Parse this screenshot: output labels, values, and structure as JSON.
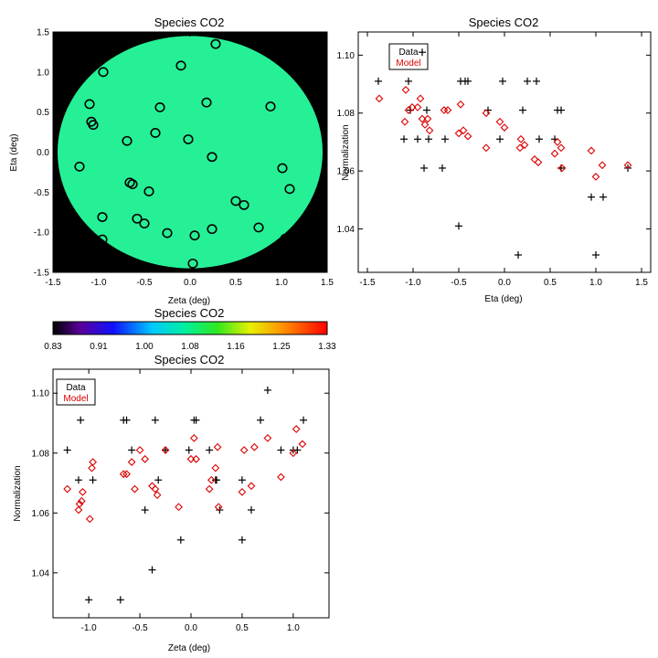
{
  "chart_data": [
    {
      "id": "map",
      "type": "scatter",
      "title": "Species CO2",
      "xlabel": "Zeta (deg)",
      "ylabel": "Eta (deg)",
      "xlim": [
        -1.5,
        1.5
      ],
      "ylim": [
        -1.5,
        1.5
      ],
      "xticks": [
        -1.5,
        -1.0,
        -0.5,
        0.0,
        0.5,
        1.0,
        1.5
      ],
      "yticks": [
        -1.5,
        -1.0,
        -0.5,
        0.0,
        0.5,
        1.0,
        1.5
      ],
      "background_color": "#000000",
      "disk_color": "#26f096",
      "disk_radius": 1.45,
      "points": [
        [
          -0.95,
          1.0
        ],
        [
          0.28,
          1.35
        ],
        [
          -0.1,
          1.08
        ],
        [
          -1.1,
          0.6
        ],
        [
          -1.08,
          0.38
        ],
        [
          -1.06,
          0.34
        ],
        [
          -0.33,
          0.56
        ],
        [
          0.18,
          0.62
        ],
        [
          0.88,
          0.57
        ],
        [
          -0.69,
          0.14
        ],
        [
          -0.38,
          0.24
        ],
        [
          -0.02,
          0.16
        ],
        [
          -1.21,
          -0.18
        ],
        [
          0.24,
          -0.06
        ],
        [
          1.01,
          -0.2
        ],
        [
          -0.66,
          -0.38
        ],
        [
          -0.63,
          -0.4
        ],
        [
          -0.45,
          -0.49
        ],
        [
          0.5,
          -0.61
        ],
        [
          0.59,
          -0.66
        ],
        [
          1.09,
          -0.46
        ],
        [
          -0.96,
          -0.81
        ],
        [
          -0.58,
          -0.83
        ],
        [
          -0.5,
          -0.89
        ],
        [
          -0.25,
          -1.01
        ],
        [
          0.05,
          -1.04
        ],
        [
          0.24,
          -0.96
        ],
        [
          0.75,
          -0.94
        ],
        [
          -0.96,
          -1.09
        ],
        [
          1.04,
          -1.08
        ],
        [
          0.03,
          -1.39
        ]
      ]
    },
    {
      "id": "colorbar",
      "type": "heatmap",
      "title": "Species CO2",
      "range": [
        0.83,
        1.33
      ],
      "tick_labels": [
        "0.83",
        "0.91",
        "1.00",
        "1.08",
        "1.16",
        "1.25",
        "1.33"
      ]
    },
    {
      "id": "eta",
      "type": "scatter",
      "title": "Species CO2",
      "xlabel": "Eta (deg)",
      "ylabel": "Normalization",
      "xlim": [
        -1.6,
        1.6
      ],
      "ylim": [
        1.025,
        1.108
      ],
      "xticks": [
        -1.5,
        -1.0,
        -0.5,
        0.0,
        0.5,
        1.0,
        1.5
      ],
      "yticks": [
        1.04,
        1.06,
        1.08,
        1.1
      ],
      "legend": [
        "Data",
        "Model"
      ],
      "legend_colors": [
        "#000000",
        "#dd0000"
      ],
      "legend_position": "top-left",
      "series": [
        {
          "name": "Data",
          "marker": "plus",
          "color": "#000000",
          "points": [
            [
              -1.38,
              1.091
            ],
            [
              -1.1,
              1.071
            ],
            [
              -1.05,
              1.091
            ],
            [
              -1.03,
              1.081
            ],
            [
              -0.95,
              1.071
            ],
            [
              -0.9,
              1.101
            ],
            [
              -0.88,
              1.061
            ],
            [
              -0.85,
              1.081
            ],
            [
              -0.83,
              1.071
            ],
            [
              -0.68,
              1.061
            ],
            [
              -0.65,
              1.071
            ],
            [
              -0.5,
              1.041
            ],
            [
              -0.48,
              1.091
            ],
            [
              -0.43,
              1.091
            ],
            [
              -0.4,
              1.091
            ],
            [
              -0.18,
              1.081
            ],
            [
              -0.05,
              1.071
            ],
            [
              -0.02,
              1.091
            ],
            [
              0.15,
              1.031
            ],
            [
              0.2,
              1.081
            ],
            [
              0.25,
              1.091
            ],
            [
              0.35,
              1.091
            ],
            [
              0.38,
              1.071
            ],
            [
              0.55,
              1.071
            ],
            [
              0.58,
              1.081
            ],
            [
              0.62,
              1.081
            ],
            [
              0.62,
              1.061
            ],
            [
              0.95,
              1.051
            ],
            [
              1.0,
              1.031
            ],
            [
              1.08,
              1.051
            ],
            [
              1.35,
              1.061
            ]
          ]
        },
        {
          "name": "Model",
          "marker": "diamond",
          "color": "#dd0000",
          "points": [
            [
              -1.37,
              1.085
            ],
            [
              -1.08,
              1.088
            ],
            [
              -1.09,
              1.077
            ],
            [
              -1.05,
              1.081
            ],
            [
              -1.01,
              1.082
            ],
            [
              -0.95,
              1.082
            ],
            [
              -0.92,
              1.085
            ],
            [
              -0.9,
              1.078
            ],
            [
              -0.87,
              1.076
            ],
            [
              -0.84,
              1.078
            ],
            [
              -0.82,
              1.074
            ],
            [
              -0.66,
              1.081
            ],
            [
              -0.62,
              1.081
            ],
            [
              -0.5,
              1.073
            ],
            [
              -0.48,
              1.083
            ],
            [
              -0.45,
              1.074
            ],
            [
              -0.4,
              1.072
            ],
            [
              -0.2,
              1.068
            ],
            [
              -0.2,
              1.08
            ],
            [
              -0.05,
              1.077
            ],
            [
              0.0,
              1.075
            ],
            [
              0.17,
              1.068
            ],
            [
              0.18,
              1.071
            ],
            [
              0.22,
              1.069
            ],
            [
              0.33,
              1.064
            ],
            [
              0.37,
              1.063
            ],
            [
              0.58,
              1.07
            ],
            [
              0.55,
              1.066
            ],
            [
              0.62,
              1.068
            ],
            [
              0.63,
              1.061
            ],
            [
              0.95,
              1.067
            ],
            [
              1.0,
              1.058
            ],
            [
              1.07,
              1.062
            ],
            [
              1.35,
              1.062
            ]
          ]
        }
      ]
    },
    {
      "id": "zeta",
      "type": "scatter",
      "title": "Species CO2",
      "xlabel": "Zeta (deg)",
      "ylabel": "Normalization",
      "xlim": [
        -1.35,
        1.35
      ],
      "ylim": [
        1.025,
        1.108
      ],
      "xticks": [
        -1.0,
        -0.5,
        0.0,
        0.5,
        1.0
      ],
      "yticks": [
        1.04,
        1.06,
        1.08,
        1.1
      ],
      "legend": [
        "Data",
        "Model"
      ],
      "legend_colors": [
        "#000000",
        "#dd0000"
      ],
      "legend_position": "top-left",
      "series": [
        {
          "name": "Data",
          "marker": "plus",
          "color": "#000000",
          "points": [
            [
              -1.21,
              1.081
            ],
            [
              -1.1,
              1.071
            ],
            [
              -1.08,
              1.091
            ],
            [
              -1.0,
              1.031
            ],
            [
              -0.96,
              1.071
            ],
            [
              -0.69,
              1.031
            ],
            [
              -0.66,
              1.091
            ],
            [
              -0.63,
              1.091
            ],
            [
              -0.58,
              1.081
            ],
            [
              -0.45,
              1.061
            ],
            [
              -0.38,
              1.041
            ],
            [
              -0.35,
              1.091
            ],
            [
              -0.32,
              1.071
            ],
            [
              -0.25,
              1.081
            ],
            [
              -0.1,
              1.051
            ],
            [
              -0.02,
              1.081
            ],
            [
              0.03,
              1.091
            ],
            [
              0.05,
              1.091
            ],
            [
              0.18,
              1.081
            ],
            [
              0.24,
              1.071
            ],
            [
              0.25,
              1.071
            ],
            [
              0.28,
              1.061
            ],
            [
              0.5,
              1.071
            ],
            [
              0.5,
              1.051
            ],
            [
              0.59,
              1.061
            ],
            [
              0.68,
              1.091
            ],
            [
              0.75,
              1.101
            ],
            [
              0.88,
              1.081
            ],
            [
              1.0,
              1.081
            ],
            [
              1.04,
              1.081
            ],
            [
              1.1,
              1.091
            ]
          ]
        },
        {
          "name": "Model",
          "marker": "diamond",
          "color": "#dd0000",
          "points": [
            [
              -1.21,
              1.068
            ],
            [
              -1.1,
              1.061
            ],
            [
              -1.09,
              1.063
            ],
            [
              -1.07,
              1.064
            ],
            [
              -1.06,
              1.067
            ],
            [
              -0.99,
              1.058
            ],
            [
              -0.96,
              1.077
            ],
            [
              -0.97,
              1.075
            ],
            [
              -0.66,
              1.073
            ],
            [
              -0.63,
              1.073
            ],
            [
              -0.58,
              1.077
            ],
            [
              -0.55,
              1.068
            ],
            [
              -0.45,
              1.078
            ],
            [
              -0.5,
              1.081
            ],
            [
              -0.38,
              1.069
            ],
            [
              -0.35,
              1.068
            ],
            [
              -0.33,
              1.066
            ],
            [
              -0.25,
              1.081
            ],
            [
              -0.12,
              1.062
            ],
            [
              0.0,
              1.078
            ],
            [
              0.03,
              1.085
            ],
            [
              0.05,
              1.078
            ],
            [
              0.18,
              1.068
            ],
            [
              0.2,
              1.071
            ],
            [
              0.24,
              1.075
            ],
            [
              0.26,
              1.082
            ],
            [
              0.27,
              1.062
            ],
            [
              0.5,
              1.067
            ],
            [
              0.52,
              1.081
            ],
            [
              0.59,
              1.069
            ],
            [
              0.62,
              1.082
            ],
            [
              0.75,
              1.085
            ],
            [
              0.88,
              1.072
            ],
            [
              1.0,
              1.08
            ],
            [
              1.03,
              1.088
            ],
            [
              1.09,
              1.083
            ]
          ]
        }
      ]
    }
  ]
}
